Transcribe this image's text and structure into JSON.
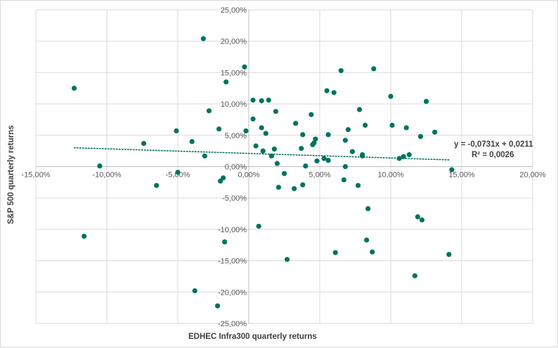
{
  "chart_data": {
    "type": "scatter",
    "title": "",
    "xlabel": "EDHEC Infra300 quarterly returns",
    "ylabel": "S&P 500 quarterly returns",
    "xlim": [
      -0.15,
      0.2
    ],
    "ylim": [
      -0.25,
      0.25
    ],
    "x_ticks": [
      -0.15,
      -0.1,
      -0.05,
      0.0,
      0.05,
      0.1,
      0.15,
      0.2
    ],
    "y_ticks": [
      -0.25,
      -0.2,
      -0.15,
      -0.1,
      -0.05,
      0.0,
      0.05,
      0.1,
      0.15,
      0.2,
      0.25
    ],
    "x_tick_labels": [
      "-15,00%",
      "-10,00%",
      "-5,00%",
      "0,00%",
      "5,00%",
      "10,00%",
      "15,00%",
      "20,00%"
    ],
    "y_tick_labels": [
      "-25,00%",
      "-20,00%",
      "-15,00%",
      "-10,00%",
      "-5,00%",
      "0,00%",
      "5,00%",
      "10,00%",
      "15,00%",
      "20,00%",
      "25,00%"
    ],
    "grid": true,
    "marker_color": "#00735f",
    "trendline": {
      "slope": -0.0731,
      "intercept": 0.0211,
      "x_range": [
        -0.123,
        0.142
      ],
      "equation_label": "y = -0,0731x + 0,0211",
      "r2_label": "R² = 0,0026",
      "style": "dotted"
    },
    "points": [
      [
        -0.123,
        0.125
      ],
      [
        -0.116,
        -0.111
      ],
      [
        -0.105,
        0.001
      ],
      [
        -0.074,
        0.037
      ],
      [
        -0.065,
        -0.03
      ],
      [
        -0.051,
        0.057
      ],
      [
        -0.05,
        -0.009
      ],
      [
        -0.04,
        0.04
      ],
      [
        -0.038,
        -0.198
      ],
      [
        -0.032,
        0.204
      ],
      [
        -0.031,
        0.017
      ],
      [
        -0.028,
        0.089
      ],
      [
        -0.022,
        -0.222
      ],
      [
        -0.021,
        0.06
      ],
      [
        -0.02,
        -0.023
      ],
      [
        -0.018,
        -0.018
      ],
      [
        -0.017,
        -0.12
      ],
      [
        -0.016,
        0.135
      ],
      [
        -0.003,
        0.159
      ],
      [
        -0.002,
        0.057
      ],
      [
        0.003,
        0.076
      ],
      [
        0.003,
        0.106
      ],
      [
        0.005,
        0.033
      ],
      [
        0.007,
        -0.095
      ],
      [
        0.009,
        0.105
      ],
      [
        0.009,
        0.062
      ],
      [
        0.01,
        0.025
      ],
      [
        0.012,
        0.053
      ],
      [
        0.014,
        0.106
      ],
      [
        0.016,
        0.017
      ],
      [
        0.018,
        0.028
      ],
      [
        0.019,
        0.088
      ],
      [
        0.02,
        0.005
      ],
      [
        0.021,
        -0.033
      ],
      [
        0.025,
        -0.011
      ],
      [
        0.027,
        -0.148
      ],
      [
        0.032,
        -0.035
      ],
      [
        0.033,
        0.069
      ],
      [
        0.037,
        0.029
      ],
      [
        0.038,
        -0.029
      ],
      [
        0.038,
        0.051
      ],
      [
        0.04,
        0.001
      ],
      [
        0.044,
        0.083
      ],
      [
        0.045,
        0.035
      ],
      [
        0.046,
        0.038
      ],
      [
        0.047,
        0.044
      ],
      [
        0.048,
        0.009
      ],
      [
        0.053,
        0.013
      ],
      [
        0.055,
        0.121
      ],
      [
        0.056,
        0.051
      ],
      [
        0.056,
        0.01
      ],
      [
        0.06,
        0.118
      ],
      [
        0.061,
        -0.137
      ],
      [
        0.065,
        0.153
      ],
      [
        0.067,
        -0.021
      ],
      [
        0.068,
        0.042
      ],
      [
        0.068,
        0.0
      ],
      [
        0.07,
        0.059
      ],
      [
        0.073,
        0.024
      ],
      [
        0.077,
        -0.03
      ],
      [
        0.078,
        0.091
      ],
      [
        0.08,
        0.017
      ],
      [
        0.08,
        0.019
      ],
      [
        0.082,
        0.066
      ],
      [
        0.083,
        -0.117
      ],
      [
        0.084,
        -0.067
      ],
      [
        0.087,
        -0.136
      ],
      [
        0.088,
        0.156
      ],
      [
        0.1,
        0.112
      ],
      [
        0.101,
        0.066
      ],
      [
        0.106,
        0.013
      ],
      [
        0.109,
        0.016
      ],
      [
        0.111,
        0.062
      ],
      [
        0.113,
        0.019
      ],
      [
        0.117,
        -0.174
      ],
      [
        0.119,
        -0.08
      ],
      [
        0.121,
        0.048
      ],
      [
        0.122,
        -0.085
      ],
      [
        0.125,
        0.104
      ],
      [
        0.131,
        0.055
      ],
      [
        0.141,
        -0.14
      ],
      [
        0.143,
        -0.005
      ]
    ]
  }
}
